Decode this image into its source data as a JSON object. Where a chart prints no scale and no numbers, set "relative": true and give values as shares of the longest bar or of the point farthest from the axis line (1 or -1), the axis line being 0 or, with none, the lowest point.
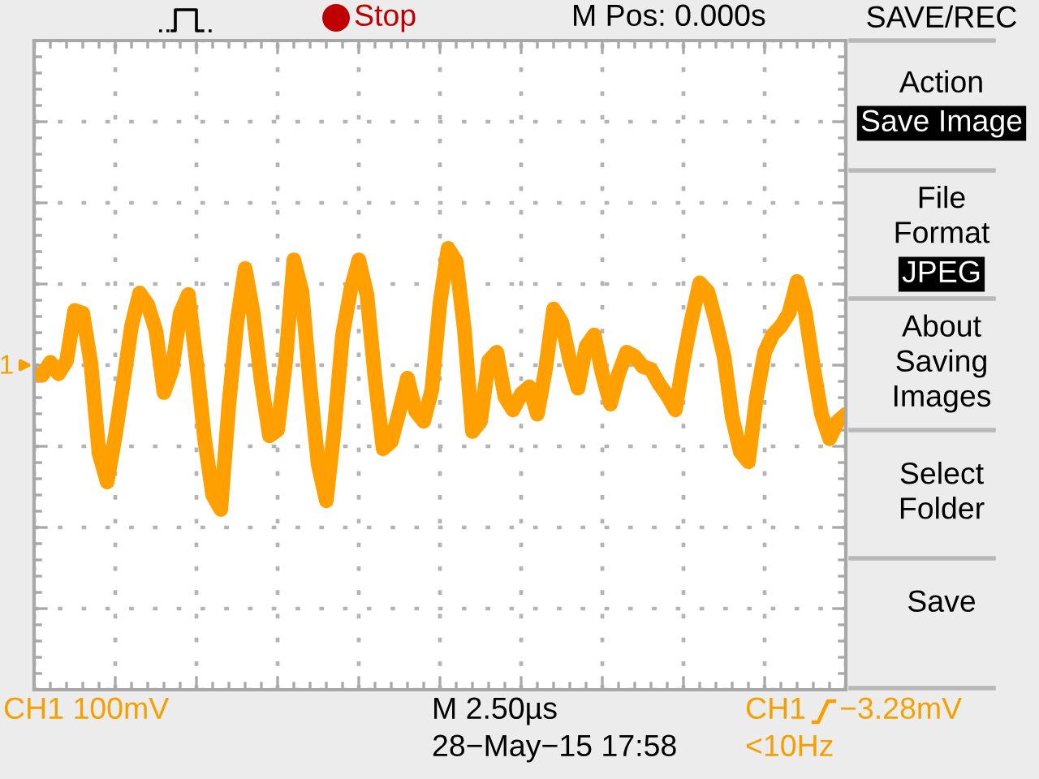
{
  "chart_data": {
    "type": "line",
    "relative": true,
    "categories": [
      null,
      null,
      null,
      null,
      null,
      null,
      null,
      null,
      null,
      null,
      null,
      null,
      null,
      null,
      null,
      null,
      null,
      null,
      null,
      null,
      null,
      null,
      null,
      null,
      null,
      null,
      null,
      null,
      null,
      null,
      null,
      null,
      null,
      null,
      null,
      null,
      null,
      null,
      null,
      null,
      null,
      null,
      null,
      null,
      null,
      null,
      null,
      null,
      null,
      null,
      null,
      null,
      null,
      null,
      null,
      null,
      null,
      null,
      null,
      null,
      null,
      null,
      null,
      null,
      null,
      null,
      null,
      null,
      null,
      null,
      null,
      null,
      null,
      null,
      null,
      null,
      null,
      null,
      null,
      null,
      null,
      null,
      null,
      null,
      null,
      null,
      null,
      null,
      null,
      null,
      null,
      null,
      null,
      null,
      null,
      null,
      null,
      null,
      null,
      null,
      null
    ],
    "series": [
      {
        "color": "#ffa000",
        "values": [
          -0.06,
          -0.07,
          0.02,
          -0.06,
          0.03,
          0.38,
          0.36,
          0.01,
          -0.61,
          -0.81,
          -0.49,
          -0.12,
          0.27,
          0.5,
          0.42,
          0.24,
          -0.19,
          -0.03,
          0.36,
          0.49,
          0.02,
          -0.51,
          -0.9,
          -1.0,
          -0.27,
          0.3,
          0.67,
          0.36,
          -0.12,
          -0.49,
          -0.45,
          0.03,
          0.73,
          0.51,
          -0.14,
          -0.69,
          -0.94,
          -0.43,
          0.21,
          0.52,
          0.73,
          0.49,
          -0.09,
          -0.58,
          -0.53,
          -0.32,
          -0.09,
          -0.32,
          -0.39,
          -0.17,
          0.43,
          0.81,
          0.72,
          0.25,
          -0.46,
          -0.39,
          0.03,
          0.09,
          -0.22,
          -0.31,
          -0.2,
          -0.15,
          -0.34,
          -0.03,
          0.39,
          0.3,
          0.03,
          -0.16,
          0.13,
          0.21,
          -0.06,
          -0.27,
          -0.06,
          0.09,
          0.06,
          -0.01,
          -0.03,
          -0.13,
          -0.21,
          -0.31,
          0.03,
          0.32,
          0.57,
          0.51,
          0.3,
          0.06,
          -0.36,
          -0.6,
          -0.67,
          -0.22,
          0.09,
          0.21,
          0.27,
          0.36,
          0.58,
          0.37,
          -0.01,
          -0.34,
          -0.51,
          -0.39,
          -0.34
        ]
      }
    ],
    "grid": true,
    "annotations": [
      "Stop",
      "M Pos: 0.000s",
      "SAVE/REC",
      "Action",
      "Save Image",
      "File\nFormat",
      "JPEG",
      "About\nSaving\nImages",
      "Select\nFolder",
      "Save",
      "CH1 100mV",
      "M 2.50µs",
      "28−May−15 17:58",
      "CH1",
      "−3.28mV",
      "<10Hz",
      "1"
    ]
  }
}
